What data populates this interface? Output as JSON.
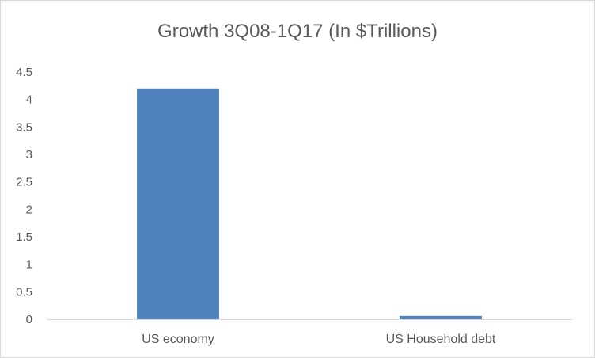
{
  "chart_data": {
    "type": "bar",
    "title": "Growth 3Q08-1Q17 (In $Trillions)",
    "categories": [
      "US economy",
      "US Household debt"
    ],
    "values": [
      4.2,
      0.06
    ],
    "ylim": [
      0,
      4.5
    ],
    "yticks": [
      "0",
      "0.5",
      "1",
      "1.5",
      "2",
      "2.5",
      "3",
      "3.5",
      "4",
      "4.5"
    ],
    "ytick_values": [
      0,
      0.5,
      1,
      1.5,
      2,
      2.5,
      3,
      3.5,
      4,
      4.5
    ],
    "grid": false,
    "legend": "none",
    "bar_color": "#4f81bd",
    "axis_color": "#d9d9d9"
  }
}
